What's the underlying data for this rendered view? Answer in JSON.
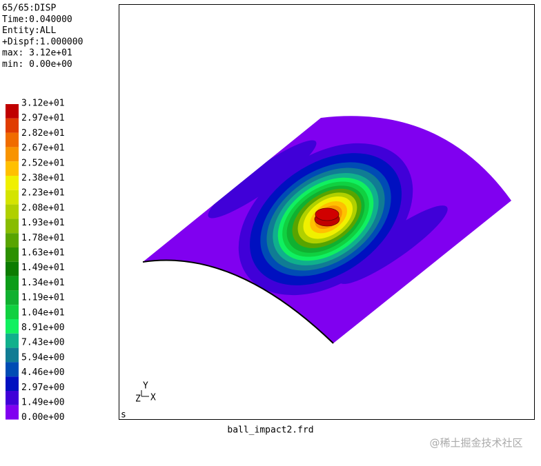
{
  "info": {
    "lines": [
      "65/65:DISP",
      "Time:0.040000",
      "Entity:ALL",
      "+Dispf:1.000000",
      "max: 3.12e+01",
      "min: 0.00e+00"
    ]
  },
  "legend": {
    "entries": [
      {
        "label": "3.12e+01",
        "color": "#c00000"
      },
      {
        "label": "2.97e+01",
        "color": "#e03c00"
      },
      {
        "label": "2.82e+01",
        "color": "#f06c00"
      },
      {
        "label": "2.67e+01",
        "color": "#f89400"
      },
      {
        "label": "2.52e+01",
        "color": "#ffc000"
      },
      {
        "label": "2.38e+01",
        "color": "#f0f000"
      },
      {
        "label": "2.23e+01",
        "color": "#d4e400"
      },
      {
        "label": "2.08e+01",
        "color": "#b0d000"
      },
      {
        "label": "1.93e+01",
        "color": "#88bc00"
      },
      {
        "label": "1.78e+01",
        "color": "#58a400"
      },
      {
        "label": "1.63e+01",
        "color": "#2c9000"
      },
      {
        "label": "1.49e+01",
        "color": "#0c7c00"
      },
      {
        "label": "1.34e+01",
        "color": "#0c9c18"
      },
      {
        "label": "1.19e+01",
        "color": "#10b030"
      },
      {
        "label": "1.04e+01",
        "color": "#10d040"
      },
      {
        "label": "8.91e+00",
        "color": "#10f060"
      },
      {
        "label": "7.43e+00",
        "color": "#10b08c"
      },
      {
        "label": "5.94e+00",
        "color": "#107c94"
      },
      {
        "label": "4.46e+00",
        "color": "#004cb4"
      },
      {
        "label": "2.97e+00",
        "color": "#0010c0"
      },
      {
        "label": "1.49e+00",
        "color": "#4000d8"
      },
      {
        "label": "0.00e+00",
        "color": "#8000f0"
      }
    ]
  },
  "viewport": {
    "corner_label": "s",
    "axes": {
      "y": "Y",
      "z": "Z",
      "x": "X"
    }
  },
  "footer": {
    "filename": "ball_impact2.frd",
    "watermark": "@稀土掘金技术社区"
  }
}
